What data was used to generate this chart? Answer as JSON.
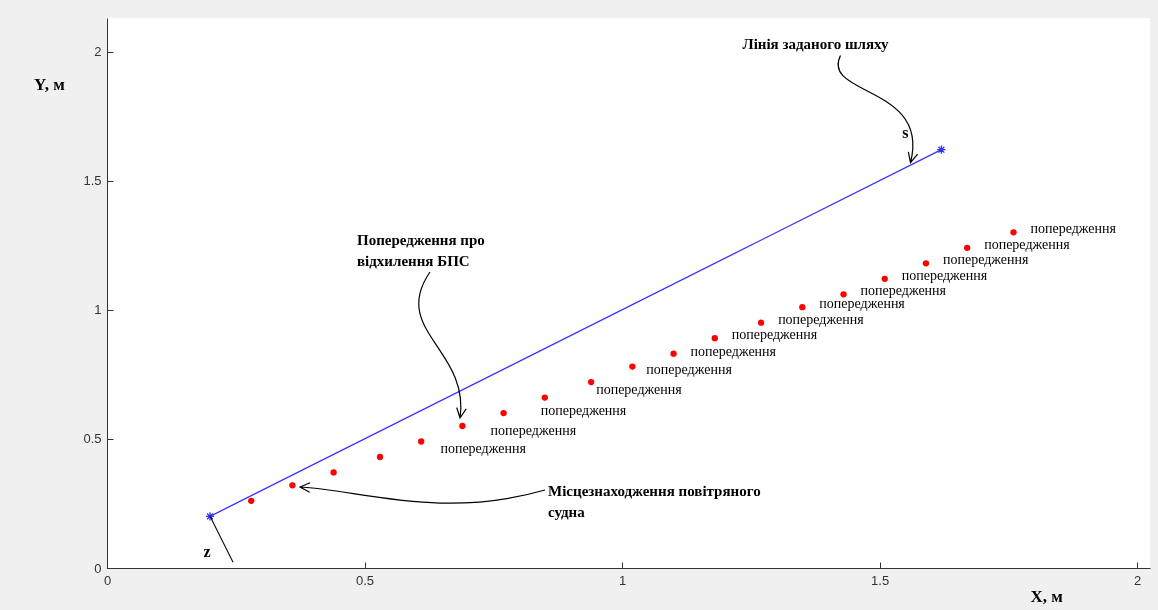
{
  "chart_data": {
    "type": "scatter",
    "xlabel": "X, м",
    "ylabel": "Y, м",
    "xlim": [
      0,
      2.025
    ],
    "ylim": [
      0,
      2.13
    ],
    "xticks": [
      0,
      0.5,
      1,
      1.5,
      2
    ],
    "yticks": [
      0,
      0.5,
      1,
      1.5,
      2
    ],
    "grid": false,
    "series": [
      {
        "type": "line",
        "color": "#3333ff",
        "marker": "cross",
        "x": [
          0.2,
          1.62
        ],
        "values": [
          0.2,
          1.62
        ]
      },
      {
        "color": "#ff0000",
        "marker": "circle",
        "x": [
          0.28,
          0.36,
          0.44,
          0.53,
          0.61,
          0.69,
          0.77,
          0.85,
          0.94,
          1.02,
          1.1,
          1.18,
          1.27,
          1.35,
          1.43,
          1.51,
          1.59,
          1.67,
          1.76
        ],
        "values": [
          0.26,
          0.32,
          0.37,
          0.43,
          0.49,
          0.55,
          0.6,
          0.66,
          0.72,
          0.78,
          0.83,
          0.89,
          0.95,
          1.01,
          1.06,
          1.12,
          1.18,
          1.24,
          1.3
        ]
      }
    ],
    "annotations": [
      {
        "text": "Лінія заданого шляху",
        "x": 1.56,
        "y": 1.57
      },
      "Попередження про\nвідхилення БПС",
      "Місцезнаходження повітряного\nсудна",
      {
        "text": "s",
        "x": 1.62,
        "y": 1.62
      },
      {
        "text": "z",
        "x": 0.2,
        "y": 0.2
      },
      {
        "text": "попередження",
        "x": 0.69,
        "y": 0.55
      },
      {
        "text": "попередження",
        "x": 0.77,
        "y": 0.6
      },
      {
        "text": "попередження",
        "x": 0.85,
        "y": 0.66
      },
      {
        "text": "попередження",
        "x": 0.94,
        "y": 0.72
      },
      {
        "text": "попередження",
        "x": 1.02,
        "y": 0.78
      },
      {
        "text": "попередження",
        "x": 1.1,
        "y": 0.83
      },
      {
        "text": "попередження",
        "x": 1.18,
        "y": 0.89
      },
      {
        "text": "попередження",
        "x": 1.27,
        "y": 0.95
      },
      {
        "text": "попередження",
        "x": 1.35,
        "y": 1.01
      },
      {
        "text": "попередження",
        "x": 1.43,
        "y": 1.06
      },
      {
        "text": "попередження",
        "x": 1.51,
        "y": 1.12
      },
      {
        "text": "попередження",
        "x": 1.59,
        "y": 1.18
      },
      {
        "text": "попередження",
        "x": 1.67,
        "y": 1.24
      },
      {
        "text": "попередження",
        "x": 1.76,
        "y": 1.3
      }
    ]
  }
}
